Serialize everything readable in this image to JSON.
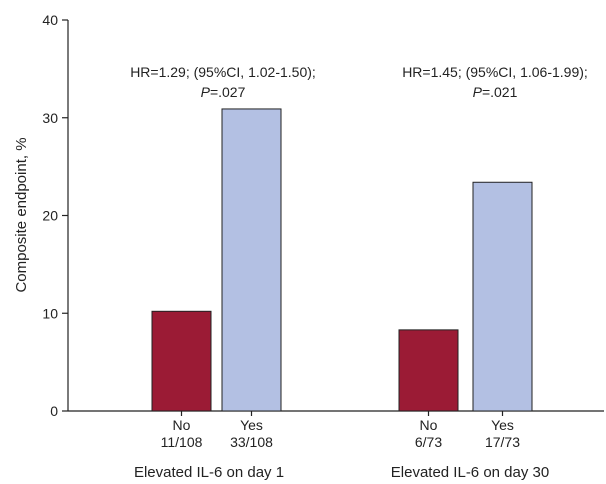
{
  "chart_data": {
    "type": "bar",
    "ylabel": "Composite endpoint, %",
    "ylim": [
      0,
      40
    ],
    "yticks": [
      0,
      10,
      20,
      30,
      40
    ],
    "grid": false,
    "groups": [
      {
        "label": "Elevated IL-6 on day 1",
        "annotation": {
          "line1": "HR=1.29; (95%CI, 1.02-1.50);",
          "p_label": "P",
          "p_value": "=.027"
        },
        "bars": [
          {
            "category": "No",
            "count": "11/108",
            "value": 10.2,
            "color": "#9b1b35"
          },
          {
            "category": "Yes",
            "count": "33/108",
            "value": 30.9,
            "color": "#b3c0e3"
          }
        ]
      },
      {
        "label": "Elevated IL-6 on day 30",
        "annotation": {
          "line1": "HR=1.45; (95%CI, 1.06-1.99);",
          "p_label": "P",
          "p_value": "=.021"
        },
        "bars": [
          {
            "category": "No",
            "count": "6/73",
            "value": 8.3,
            "color": "#9b1b35"
          },
          {
            "category": "Yes",
            "count": "17/73",
            "value": 23.4,
            "color": "#b3c0e3"
          }
        ]
      }
    ]
  }
}
